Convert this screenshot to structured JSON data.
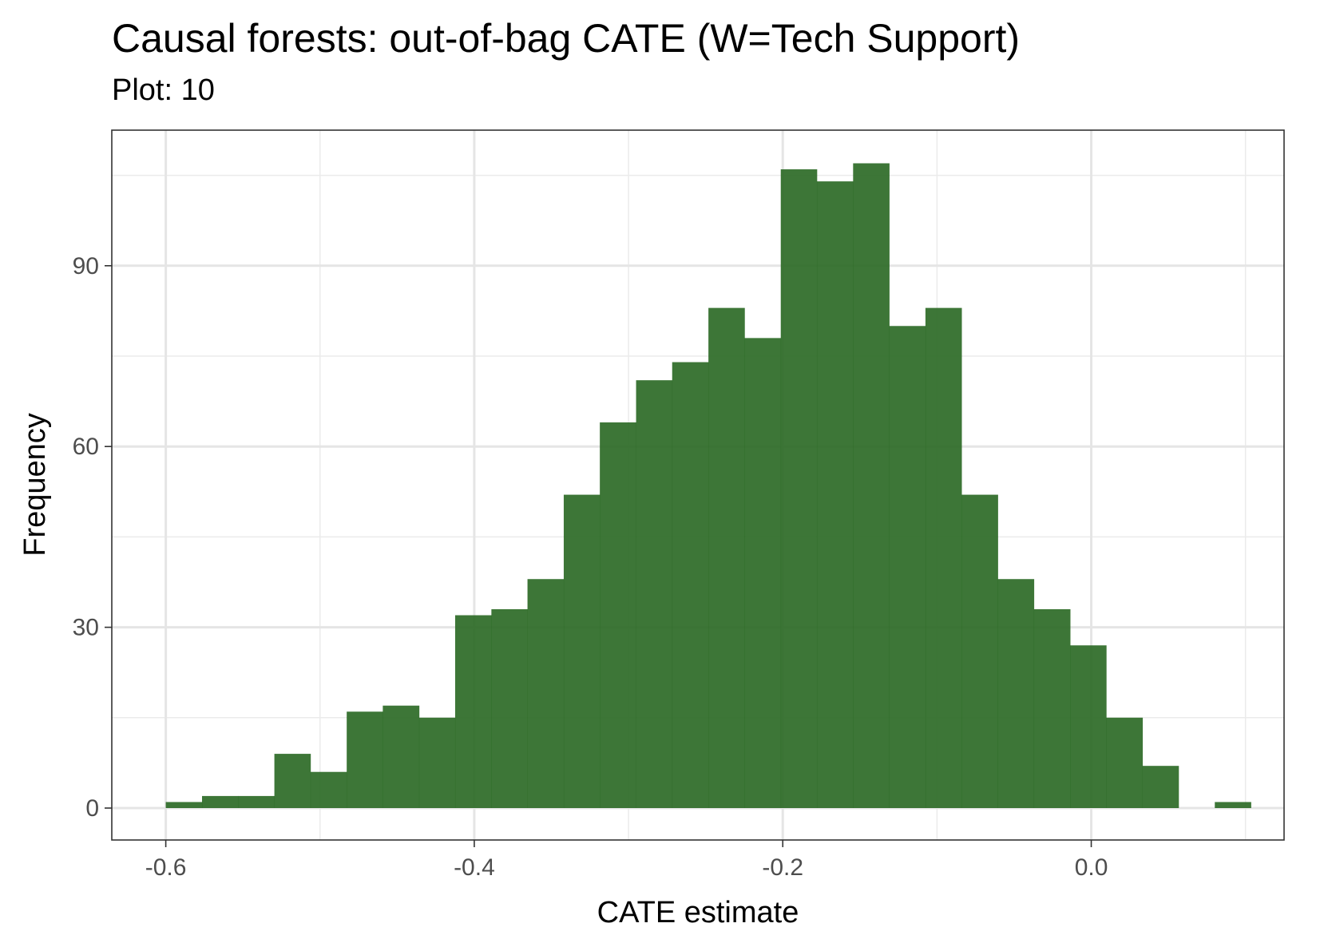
{
  "chart_data": {
    "type": "bar",
    "subtype": "histogram",
    "title": "Causal forests: out-of-bag CATE (W=Tech Support)",
    "subtitle": "Plot: 10",
    "xlabel": "CATE estimate",
    "ylabel": "Frequency",
    "xlim": [
      -0.635,
      0.125
    ],
    "ylim": [
      -5.3,
      112.5
    ],
    "x_ticks": [
      -0.6,
      -0.4,
      -0.2,
      0.0
    ],
    "x_tick_labels": [
      "-0.6",
      "-0.4",
      "-0.2",
      "0.0"
    ],
    "y_ticks": [
      0,
      30,
      60,
      90
    ],
    "y_tick_labels": [
      "0",
      "30",
      "60",
      "90"
    ],
    "grid": true,
    "bar_color": "#2d6a26",
    "bin_width": 0.02345,
    "bins": [
      {
        "x0": -0.6,
        "x1": -0.5765,
        "count": 1
      },
      {
        "x0": -0.5765,
        "x1": -0.5531,
        "count": 2
      },
      {
        "x0": -0.5531,
        "x1": -0.5296,
        "count": 2
      },
      {
        "x0": -0.5296,
        "x1": -0.5062,
        "count": 9
      },
      {
        "x0": -0.5062,
        "x1": -0.4827,
        "count": 6
      },
      {
        "x0": -0.4827,
        "x1": -0.4593,
        "count": 16
      },
      {
        "x0": -0.4593,
        "x1": -0.4358,
        "count": 17
      },
      {
        "x0": -0.4358,
        "x1": -0.4124,
        "count": 15
      },
      {
        "x0": -0.4124,
        "x1": -0.3889,
        "count": 32
      },
      {
        "x0": -0.3889,
        "x1": -0.3655,
        "count": 33
      },
      {
        "x0": -0.3655,
        "x1": -0.342,
        "count": 38
      },
      {
        "x0": -0.342,
        "x1": -0.3186,
        "count": 52
      },
      {
        "x0": -0.3186,
        "x1": -0.2951,
        "count": 64
      },
      {
        "x0": -0.2951,
        "x1": -0.2717,
        "count": 71
      },
      {
        "x0": -0.2717,
        "x1": -0.2482,
        "count": 74
      },
      {
        "x0": -0.2482,
        "x1": -0.2248,
        "count": 83
      },
      {
        "x0": -0.2248,
        "x1": -0.2013,
        "count": 78
      },
      {
        "x0": -0.2013,
        "x1": -0.1779,
        "count": 106
      },
      {
        "x0": -0.1779,
        "x1": -0.1544,
        "count": 104
      },
      {
        "x0": -0.1544,
        "x1": -0.131,
        "count": 107
      },
      {
        "x0": -0.131,
        "x1": -0.1075,
        "count": 80
      },
      {
        "x0": -0.1075,
        "x1": -0.0841,
        "count": 83
      },
      {
        "x0": -0.0841,
        "x1": -0.0606,
        "count": 52
      },
      {
        "x0": -0.0606,
        "x1": -0.0372,
        "count": 38
      },
      {
        "x0": -0.0372,
        "x1": -0.0137,
        "count": 33
      },
      {
        "x0": -0.0137,
        "x1": 0.0097,
        "count": 27
      },
      {
        "x0": 0.0097,
        "x1": 0.0332,
        "count": 15
      },
      {
        "x0": 0.0332,
        "x1": 0.0566,
        "count": 7
      },
      {
        "x0": 0.0566,
        "x1": 0.0801,
        "count": 0
      },
      {
        "x0": 0.0801,
        "x1": 0.1035,
        "count": 1
      }
    ]
  }
}
